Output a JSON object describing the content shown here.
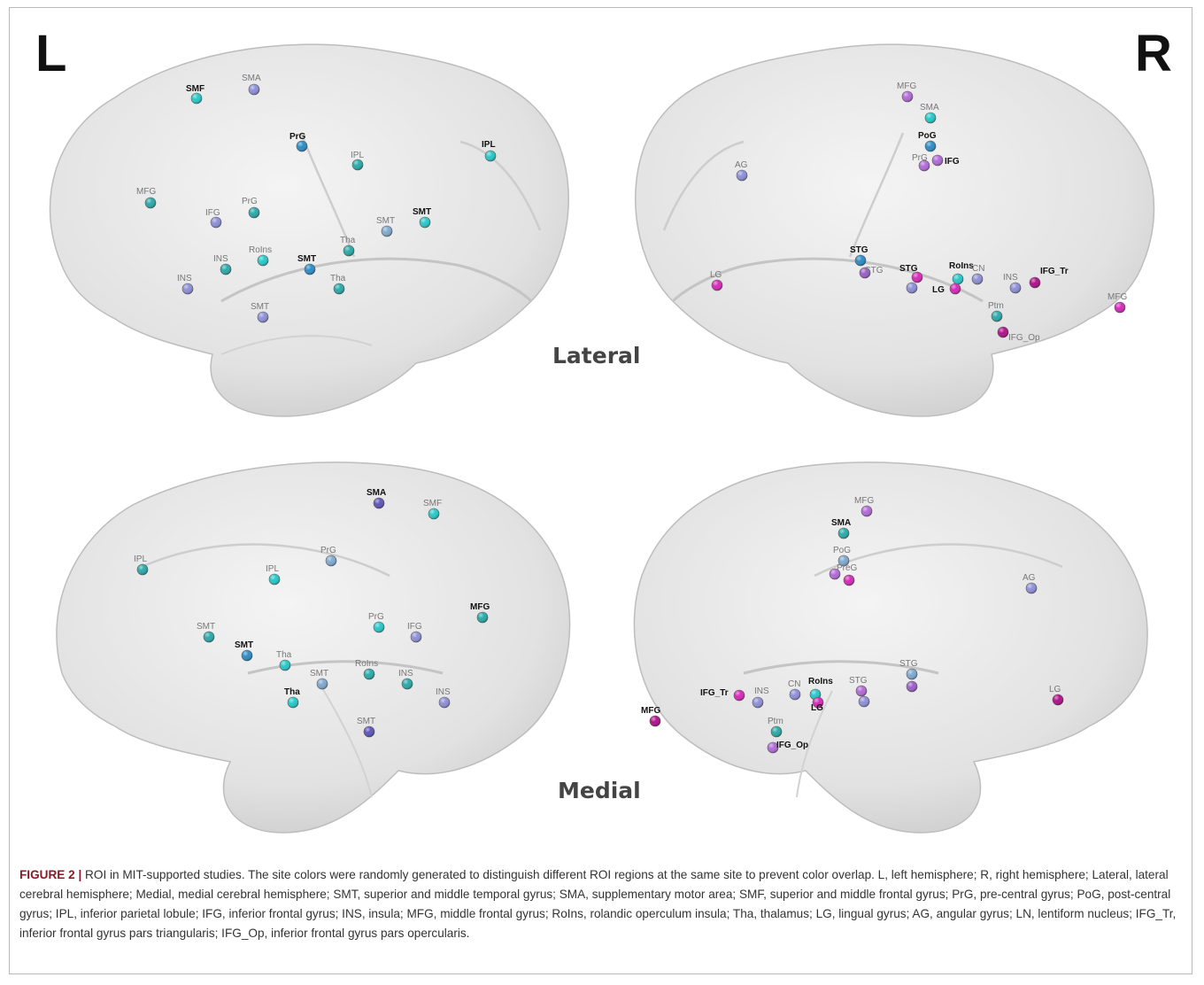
{
  "figure": {
    "left_label": "L",
    "right_label": "R",
    "lateral_label": "Lateral",
    "medial_label": "Medial"
  },
  "colors": {
    "brain_fill": "#e8e8e8",
    "brain_shade": "#cfcfcf",
    "brain_stroke": "#b5b5b5",
    "cyan": "#27c8c8",
    "teal": "#2aa9a9",
    "blue": "#2b8cc4",
    "steel": "#7fa9cf",
    "lavender": "#8e8fd6",
    "periwinkle": "#7f86d8",
    "purple": "#9b5fc9",
    "violet": "#b26ad6",
    "magenta": "#d52ab8",
    "dark_magenta": "#b0108a",
    "indigo": "#5e55b8"
  },
  "panels": [
    {
      "id": "lateral-left",
      "rois": [
        {
          "label": "SMF",
          "color": "cyan",
          "bold": true
        },
        {
          "label": "SMA",
          "color": "lavender",
          "bold": false
        },
        {
          "label": "PrG",
          "color": "blue",
          "bold": true
        },
        {
          "label": "IPL",
          "color": "cyan",
          "bold": true
        },
        {
          "label": "IPL",
          "color": "teal",
          "bold": false
        },
        {
          "label": "MFG",
          "color": "teal",
          "bold": false
        },
        {
          "label": "IFG",
          "color": "lavender",
          "bold": false
        },
        {
          "label": "PrG",
          "color": "teal",
          "bold": false
        },
        {
          "label": "SMT",
          "color": "cyan",
          "bold": true
        },
        {
          "label": "SMT",
          "color": "steel",
          "bold": false
        },
        {
          "label": "Tha",
          "color": "teal",
          "bold": false
        },
        {
          "label": "RoIns",
          "color": "cyan",
          "bold": false
        },
        {
          "label": "INS",
          "color": "teal",
          "bold": false
        },
        {
          "label": "SMT",
          "color": "blue",
          "bold": true
        },
        {
          "label": "INS",
          "color": "lavender",
          "bold": false
        },
        {
          "label": "Tha",
          "color": "teal",
          "bold": false
        },
        {
          "label": "SMT",
          "color": "lavender",
          "bold": false
        }
      ]
    },
    {
      "id": "lateral-right",
      "rois": [
        {
          "label": "MFG",
          "color": "violet",
          "bold": false
        },
        {
          "label": "SMA",
          "color": "cyan",
          "bold": false
        },
        {
          "label": "PoG",
          "color": "blue",
          "bold": true
        },
        {
          "label": "PrG",
          "color": "violet",
          "bold": false
        },
        {
          "label": "IFG",
          "color": "violet",
          "bold": true
        },
        {
          "label": "AG",
          "color": "lavender",
          "bold": false
        },
        {
          "label": "STG",
          "color": "blue",
          "bold": true
        },
        {
          "label": "STG",
          "color": "purple",
          "bold": false
        },
        {
          "label": "STG",
          "color": "magenta",
          "bold": true
        },
        {
          "label": "",
          "color": "lavender",
          "bold": false
        },
        {
          "label": "RoIns",
          "color": "cyan",
          "bold": true
        },
        {
          "label": "LG",
          "color": "magenta",
          "bold": true
        },
        {
          "label": "CN",
          "color": "lavender",
          "bold": false
        },
        {
          "label": "INS",
          "color": "lavender",
          "bold": false
        },
        {
          "label": "IFG_Tr",
          "color": "dark_magenta",
          "bold": true
        },
        {
          "label": "LG",
          "color": "magenta",
          "bold": false
        },
        {
          "label": "Ptm",
          "color": "teal",
          "bold": false
        },
        {
          "label": "IFG_Op",
          "color": "dark_magenta",
          "bold": false
        },
        {
          "label": "MFG",
          "color": "magenta",
          "bold": false
        }
      ]
    },
    {
      "id": "medial-left",
      "rois": [
        {
          "label": "SMA",
          "color": "indigo",
          "bold": true
        },
        {
          "label": "SMF",
          "color": "cyan",
          "bold": false
        },
        {
          "label": "IPL",
          "color": "teal",
          "bold": false
        },
        {
          "label": "PrG",
          "color": "steel",
          "bold": false
        },
        {
          "label": "IPL",
          "color": "cyan",
          "bold": false
        },
        {
          "label": "MFG",
          "color": "teal",
          "bold": true
        },
        {
          "label": "PrG",
          "color": "cyan",
          "bold": false
        },
        {
          "label": "IFG",
          "color": "lavender",
          "bold": false
        },
        {
          "label": "SMT",
          "color": "teal",
          "bold": false
        },
        {
          "label": "SMT",
          "color": "blue",
          "bold": true
        },
        {
          "label": "Tha",
          "color": "cyan",
          "bold": false
        },
        {
          "label": "SMT",
          "color": "steel",
          "bold": false
        },
        {
          "label": "RoIns",
          "color": "teal",
          "bold": false
        },
        {
          "label": "INS",
          "color": "teal",
          "bold": false
        },
        {
          "label": "INS",
          "color": "lavender",
          "bold": false
        },
        {
          "label": "Tha",
          "color": "cyan",
          "bold": true
        },
        {
          "label": "SMT",
          "color": "indigo",
          "bold": false
        }
      ]
    },
    {
      "id": "medial-right",
      "rois": [
        {
          "label": "MFG",
          "color": "violet",
          "bold": false
        },
        {
          "label": "SMA",
          "color": "teal",
          "bold": true
        },
        {
          "label": "PoG",
          "color": "steel",
          "bold": false
        },
        {
          "label": "PreG",
          "color": "violet",
          "bold": false
        },
        {
          "label": "",
          "color": "magenta",
          "bold": false
        },
        {
          "label": "AG",
          "color": "lavender",
          "bold": false
        },
        {
          "label": "STG",
          "color": "steel",
          "bold": false
        },
        {
          "label": "",
          "color": "purple",
          "bold": false
        },
        {
          "label": "STG",
          "color": "violet",
          "bold": false
        },
        {
          "label": "",
          "color": "lavender",
          "bold": false
        },
        {
          "label": "RoIns",
          "color": "cyan",
          "bold": true
        },
        {
          "label": "CN",
          "color": "lavender",
          "bold": false
        },
        {
          "label": "LG",
          "color": "magenta",
          "bold": true
        },
        {
          "label": "IFG_Tr",
          "color": "magenta",
          "bold": true
        },
        {
          "label": "INS",
          "color": "lavender",
          "bold": false
        },
        {
          "label": "Ptm",
          "color": "teal",
          "bold": false
        },
        {
          "label": "IFG_Op",
          "color": "violet",
          "bold": true
        },
        {
          "label": "MFG",
          "color": "dark_magenta",
          "bold": true
        },
        {
          "label": "LG",
          "color": "dark_magenta",
          "bold": false
        }
      ]
    }
  ],
  "caption": {
    "fig_label": "FIGURE 2 |",
    "text": " ROI in MIT-supported studies. The site colors were randomly generated to distinguish different ROI regions at the same site to prevent color overlap. L, left hemisphere; R, right hemisphere; Lateral, lateral cerebral hemisphere; Medial, medial cerebral hemisphere; SMT, superior and middle temporal gyrus; SMA, supplementary motor area; SMF, superior and middle frontal gyrus; PrG, pre-central gyrus; PoG, post-central gyrus; IPL, inferior parietal lobule; IFG, inferior frontal gyrus; INS, insula; MFG, middle frontal gyrus; RoIns, rolandic operculum insula; Tha, thalamus; LG, lingual gyrus; AG, angular gyrus; LN, lentiform nucleus; IFG_Tr, inferior frontal gyrus pars triangularis; IFG_Op, inferior frontal gyrus pars opercularis."
  }
}
